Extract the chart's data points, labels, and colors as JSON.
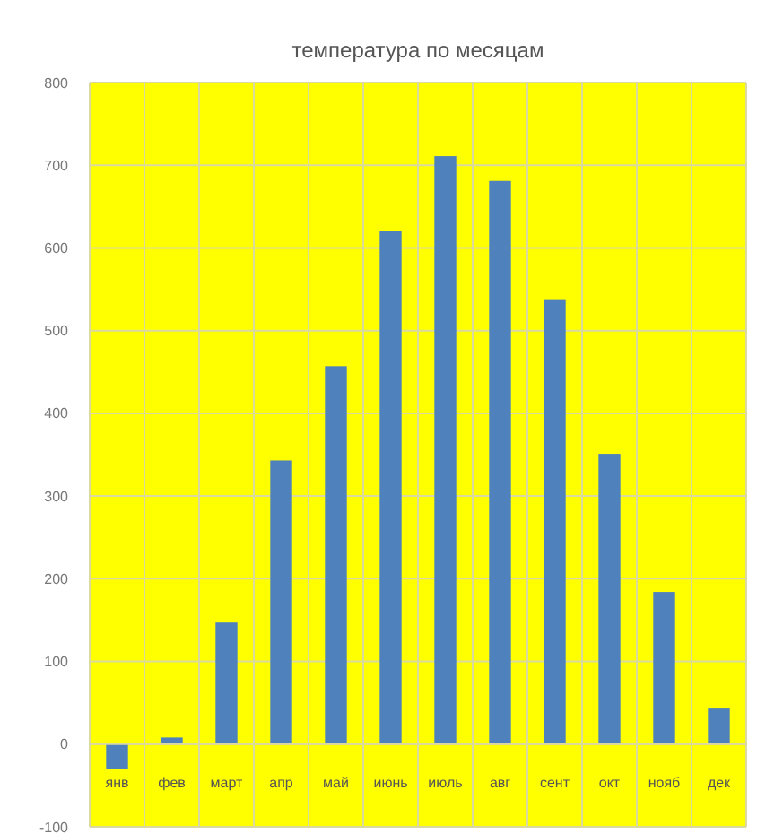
{
  "chart_data": {
    "type": "bar",
    "title": "температура по месяцам",
    "categories": [
      "янв",
      "фев",
      "март",
      "апр",
      "май",
      "июнь",
      "июль",
      "авг",
      "сент",
      "окт",
      "нояб",
      "дек"
    ],
    "values": [
      -30,
      8,
      147,
      343,
      457,
      620,
      711,
      681,
      538,
      351,
      184,
      43
    ],
    "color": "#4f81bd",
    "ylim": [
      -100,
      800
    ],
    "yticks": [
      -100,
      0,
      100,
      200,
      300,
      400,
      500,
      600,
      700,
      800
    ],
    "grid": true
  }
}
